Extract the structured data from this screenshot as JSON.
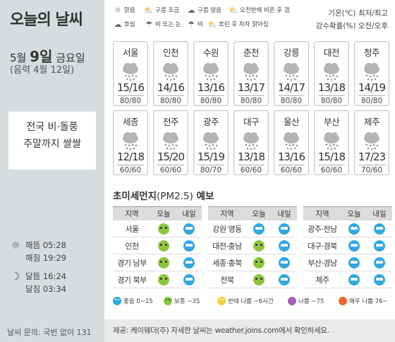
{
  "title": "오늘의 날씨",
  "date": {
    "month_label": "5월",
    "day_label": "9일",
    "weekday": "금요일",
    "lunar": "(음력 4월 12일)"
  },
  "headline": {
    "line1": "전국 비·돌풍",
    "line2": "주말까지 쌀쌀"
  },
  "sun_moon": {
    "sunrise_label": "해뜸",
    "sunrise": "05:28",
    "sunset_label": "해짐",
    "sunset": "19:29",
    "moonrise_label": "달뜸",
    "moonrise": "16:24",
    "moonset_label": "달짐",
    "moonset": "03:34"
  },
  "inquiry": "날씨 문의: 국번 없이 131",
  "legend": {
    "items": [
      {
        "icon": "sun-icon",
        "label": "맑음"
      },
      {
        "icon": "cloud-little-icon",
        "label": "구름 조금"
      },
      {
        "icon": "cloud-much-icon",
        "label": "구름 많음"
      },
      {
        "icon": "rain-after-icon",
        "label": "오전한때 비온 후 갬"
      },
      {
        "icon": "overcast-icon",
        "label": "흐림"
      },
      {
        "icon": "rain-snow-icon",
        "label": "비 또는 눈"
      },
      {
        "icon": "rain-icon",
        "label": "비"
      },
      {
        "icon": "clearing-icon",
        "label": "흐린 후 차차 맑아짐"
      }
    ],
    "temp_label": "기온(℃) 최저/최고",
    "precip_label": "강수확률(%) 오전/오후"
  },
  "cities": [
    {
      "name": "서울",
      "temp": "15/16",
      "precip": "80/80"
    },
    {
      "name": "인천",
      "temp": "14/16",
      "precip": "80/80"
    },
    {
      "name": "수원",
      "temp": "13/16",
      "precip": "80/80"
    },
    {
      "name": "춘천",
      "temp": "13/17",
      "precip": "80/80"
    },
    {
      "name": "강릉",
      "temp": "14/17",
      "precip": "80/80"
    },
    {
      "name": "대전",
      "temp": "13/18",
      "precip": "80/80"
    },
    {
      "name": "청주",
      "temp": "14/19",
      "precip": "80/80"
    },
    {
      "name": "세종",
      "temp": "12/18",
      "precip": "60/60"
    },
    {
      "name": "전주",
      "temp": "15/20",
      "precip": "60/60"
    },
    {
      "name": "광주",
      "temp": "15/19",
      "precip": "80/70"
    },
    {
      "name": "대구",
      "temp": "13/18",
      "precip": "60/60"
    },
    {
      "name": "울산",
      "temp": "13/16",
      "precip": "60/60"
    },
    {
      "name": "부산",
      "temp": "15/18",
      "precip": "60/60"
    },
    {
      "name": "제주",
      "temp": "17/23",
      "precip": "70/60"
    }
  ],
  "dust": {
    "title": "초미세먼지",
    "title_paren": "(PM2.5)",
    "title_tail": " 예보",
    "headers": {
      "region": "지역",
      "today": "오늘",
      "tomorrow": "내일"
    },
    "col1": [
      {
        "region": "서울",
        "today": "normal",
        "tomorrow": "good"
      },
      {
        "region": "인천",
        "today": "normal",
        "tomorrow": "good"
      },
      {
        "region": "경기 남부",
        "today": "normal",
        "tomorrow": "good"
      },
      {
        "region": "경기 북부",
        "today": "normal",
        "tomorrow": "good"
      }
    ],
    "col2": [
      {
        "region": "강원 영동",
        "today": "good",
        "tomorrow": "good"
      },
      {
        "region": "대전·충남",
        "today": "normal",
        "tomorrow": "good"
      },
      {
        "region": "세종·충북",
        "today": "normal",
        "tomorrow": "good"
      },
      {
        "region": "전북",
        "today": "normal",
        "tomorrow": "good"
      }
    ],
    "col3": [
      {
        "region": "광주·전남",
        "today": "good",
        "tomorrow": "good"
      },
      {
        "region": "대구·경북",
        "today": "good",
        "tomorrow": "good"
      },
      {
        "region": "부산·경남",
        "today": "good",
        "tomorrow": "good"
      },
      {
        "region": "제주",
        "today": "good",
        "tomorrow": "good"
      }
    ],
    "legend": {
      "good": "좋음 0~15",
      "normal": "보통 ~35",
      "bad": "한때 나쁨 ~6시간",
      "very_bad": "나쁨 ~75",
      "worst": "매우 나쁨 76~"
    }
  },
  "source": "제공: 케이웨더(주) 자세한 날씨는 weather.joins.com에서 확인하세요."
}
